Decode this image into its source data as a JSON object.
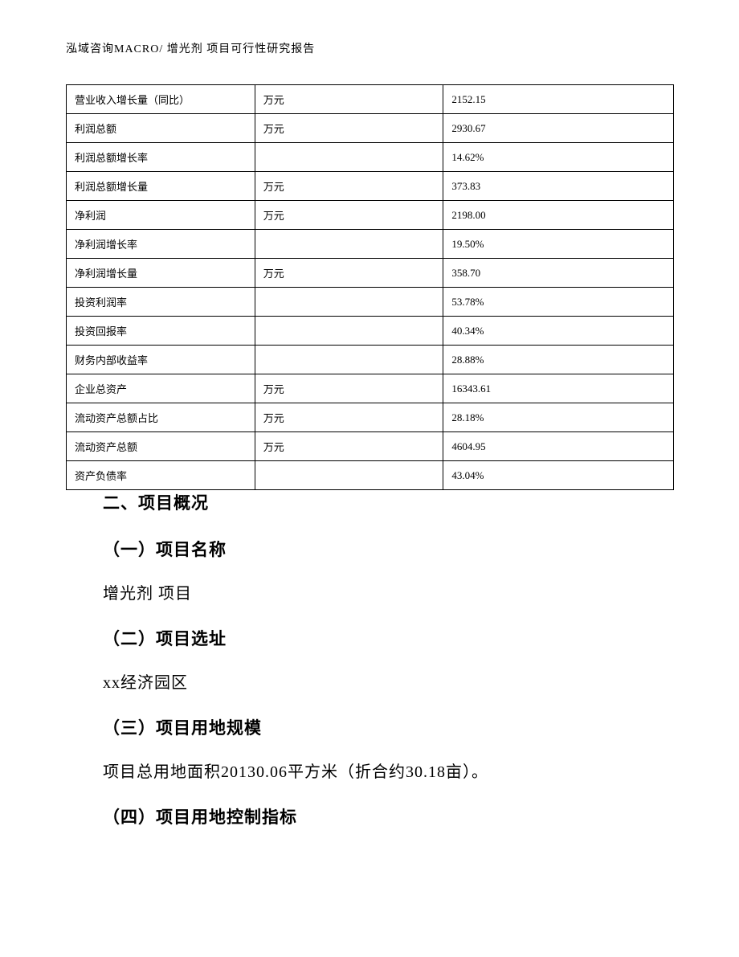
{
  "header": {
    "text": "泓域咨询MACRO/   增光剂 项目可行性研究报告"
  },
  "table": {
    "rows": [
      {
        "label": "营业收入增长量（同比）",
        "unit": "万元",
        "value": "2152.15"
      },
      {
        "label": "利润总额",
        "unit": "万元",
        "value": "2930.67"
      },
      {
        "label": "利润总额增长率",
        "unit": "",
        "value": "14.62%"
      },
      {
        "label": "利润总额增长量",
        "unit": "万元",
        "value": "373.83"
      },
      {
        "label": "净利润",
        "unit": "万元",
        "value": "2198.00"
      },
      {
        "label": "净利润增长率",
        "unit": "",
        "value": "19.50%"
      },
      {
        "label": "净利润增长量",
        "unit": "万元",
        "value": "358.70"
      },
      {
        "label": "投资利润率",
        "unit": "",
        "value": "53.78%"
      },
      {
        "label": "投资回报率",
        "unit": "",
        "value": "40.34%"
      },
      {
        "label": "财务内部收益率",
        "unit": "",
        "value": "28.88%"
      },
      {
        "label": "企业总资产",
        "unit": "万元",
        "value": "16343.61"
      },
      {
        "label": "流动资产总额占比",
        "unit": "万元",
        "value": "28.18%"
      },
      {
        "label": "流动资产总额",
        "unit": "万元",
        "value": "4604.95"
      },
      {
        "label": "资产负债率",
        "unit": "",
        "value": "43.04%"
      }
    ]
  },
  "content": {
    "section_title": "二、项目概况",
    "sub1_title": "（一）项目名称",
    "sub1_text": "增光剂 项目",
    "sub2_title": "（二）项目选址",
    "sub2_text": "xx经济园区",
    "sub3_title": "（三）项目用地规模",
    "sub3_text": "项目总用地面积20130.06平方米（折合约30.18亩）。",
    "sub4_title": "（四）项目用地控制指标"
  }
}
